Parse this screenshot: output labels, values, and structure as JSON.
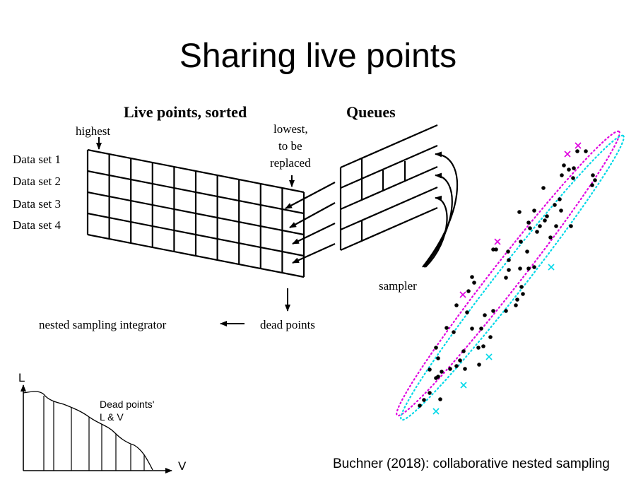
{
  "title": "Sharing live points",
  "headers": {
    "live_points": "Live points, sorted",
    "queues": "Queues"
  },
  "labels": {
    "highest": "highest",
    "lowest_lines": [
      "lowest,",
      "to be",
      "replaced"
    ],
    "datasets": [
      "Data set 1",
      "Data set 2",
      "Data set 3",
      "Data set 4"
    ],
    "sampler": "sampler",
    "dead_points": "dead points",
    "integrator": "nested sampling integrator"
  },
  "inset": {
    "y_axis": "L",
    "x_axis": "V",
    "caption_lines": [
      "Dead points'",
      "L & V"
    ]
  },
  "citation": "Buchner (2018): collaborative nested sampling",
  "colors": {
    "ink": "#000000",
    "upper_contour": "#e000e0",
    "lower_contour": "#00d8e8"
  }
}
